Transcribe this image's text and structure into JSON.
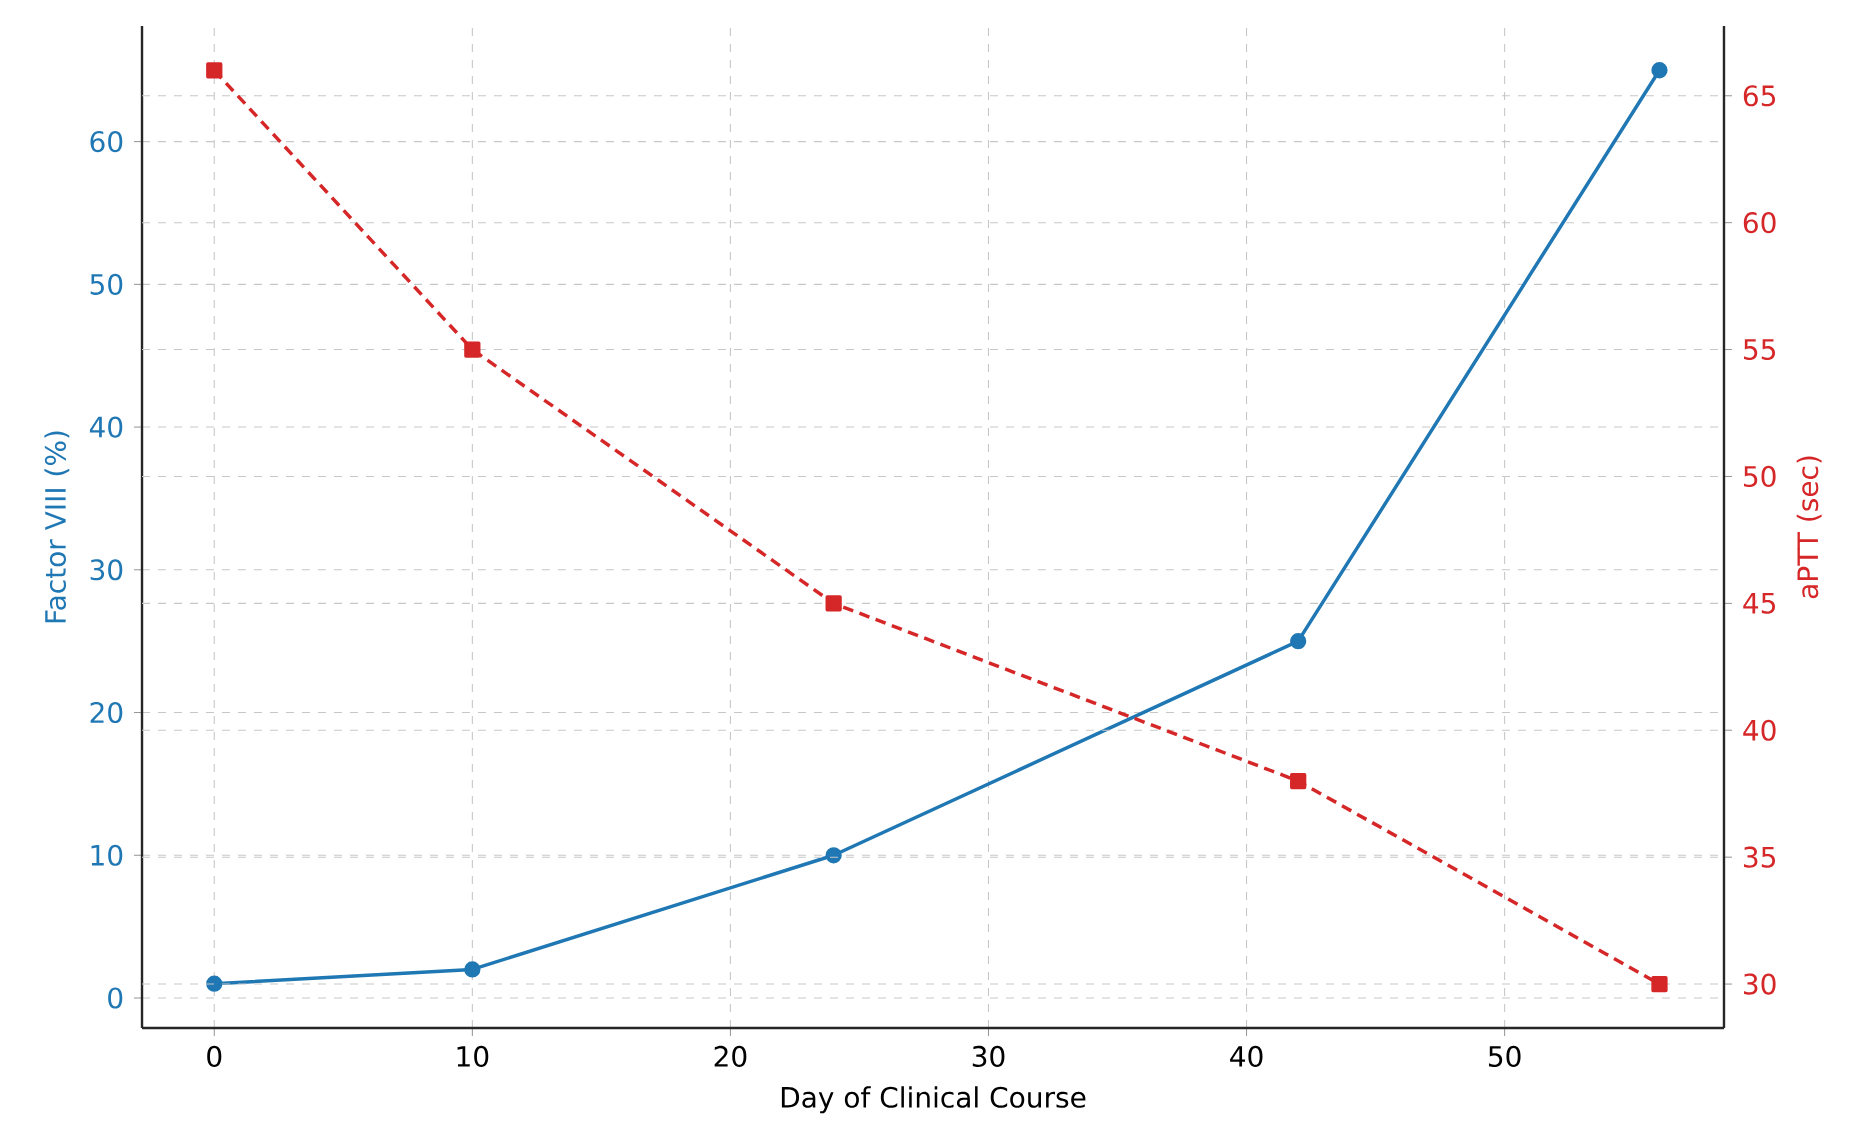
{
  "chart_data": {
    "type": "line",
    "xlabel": "Day of Clinical Course",
    "ylabel": "Factor VIII (%)",
    "y2label": "aPTT (sec)",
    "x": [
      0,
      10,
      24,
      42,
      56
    ],
    "series": [
      {
        "color": "#1f77b4",
        "values": [
          1,
          2,
          10,
          25,
          65
        ],
        "marker": "circle",
        "line_style": "solid",
        "axis": "y"
      },
      {
        "color": "#d62728",
        "values": [
          66,
          55,
          45,
          38,
          30
        ],
        "marker": "square",
        "line_style": "dashed",
        "axis": "y2"
      }
    ],
    "xlim": [
      -2.8,
      58.5
    ],
    "ylim": [
      -2.1,
      68.1
    ],
    "y2lim": [
      28.27,
      67.75
    ],
    "xticks": [
      0,
      10,
      20,
      30,
      40,
      50
    ],
    "yticks": [
      0,
      10,
      20,
      30,
      40,
      50,
      60
    ],
    "y2ticks": [
      30,
      35,
      40,
      45,
      50,
      55,
      60,
      65
    ],
    "grid": true
  }
}
